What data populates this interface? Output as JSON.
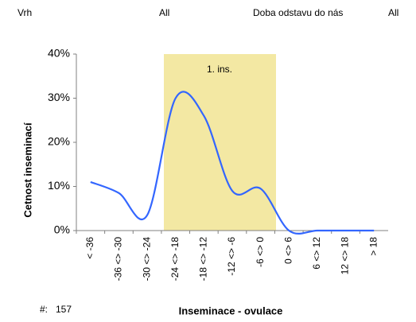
{
  "filters": [
    {
      "label": "Vrh",
      "value": "All"
    },
    {
      "label": "Doba odstavu do nás",
      "value": "All"
    }
  ],
  "count": {
    "label": "#:",
    "value": "157"
  },
  "chart_data": {
    "type": "line",
    "y_label": "Cetnost inseminací",
    "x_label": "Inseminace - ovulace",
    "annotation": "1. ins.",
    "categories": [
      "< -36",
      "-36 <> -30",
      "-30 <> -24",
      "-24 <> -18",
      "-18 <> -12",
      "-12 <> -6",
      "-6 <> 0",
      "0 <> 6",
      "6 <> 12",
      "12 <> 18",
      "> 18"
    ],
    "series": [
      {
        "name": "Cetnost",
        "color": "#3366ff",
        "values": [
          11,
          8.5,
          3.5,
          30,
          26,
          9,
          9.5,
          0,
          0,
          0,
          0
        ]
      }
    ],
    "ylim": [
      0,
      40
    ],
    "yticks": [
      {
        "value": 0,
        "label": "0%"
      },
      {
        "value": 10,
        "label": "10%"
      },
      {
        "value": 20,
        "label": "20%"
      },
      {
        "value": 30,
        "label": "30%"
      },
      {
        "value": 40,
        "label": "40%"
      }
    ]
  }
}
